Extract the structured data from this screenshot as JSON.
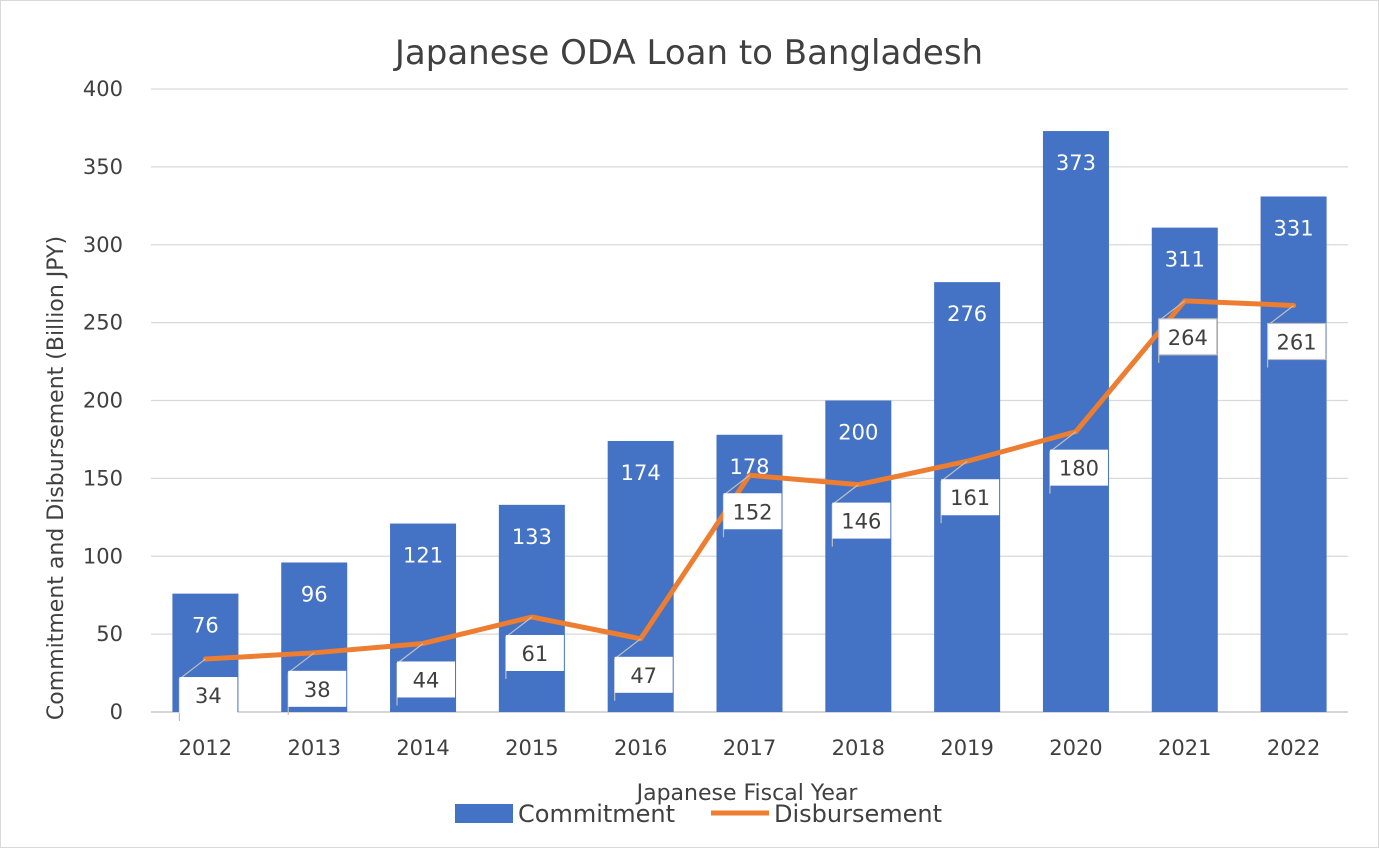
{
  "chart_data": {
    "type": "bar",
    "title": "Japanese ODA Loan to Bangladesh",
    "xlabel": "Japanese Fiscal Year",
    "ylabel": "Commitment and Disbursement (Billion JPY)",
    "categories": [
      "2012",
      "2013",
      "2014",
      "2015",
      "2016",
      "2017",
      "2018",
      "2019",
      "2020",
      "2021",
      "2022"
    ],
    "ylim": [
      0,
      400
    ],
    "yticks": [
      0,
      50,
      100,
      150,
      200,
      250,
      300,
      350,
      400
    ],
    "grid": true,
    "legend_position": "bottom",
    "series": [
      {
        "name": "Commitment",
        "type": "bar",
        "color": "#4472c4",
        "values": [
          76,
          96,
          121,
          133,
          174,
          178,
          200,
          276,
          373,
          311,
          331
        ]
      },
      {
        "name": "Disbursement",
        "type": "line",
        "color": "#ed7d31",
        "values": [
          34,
          38,
          44,
          61,
          47,
          152,
          146,
          161,
          180,
          264,
          261
        ]
      }
    ]
  }
}
